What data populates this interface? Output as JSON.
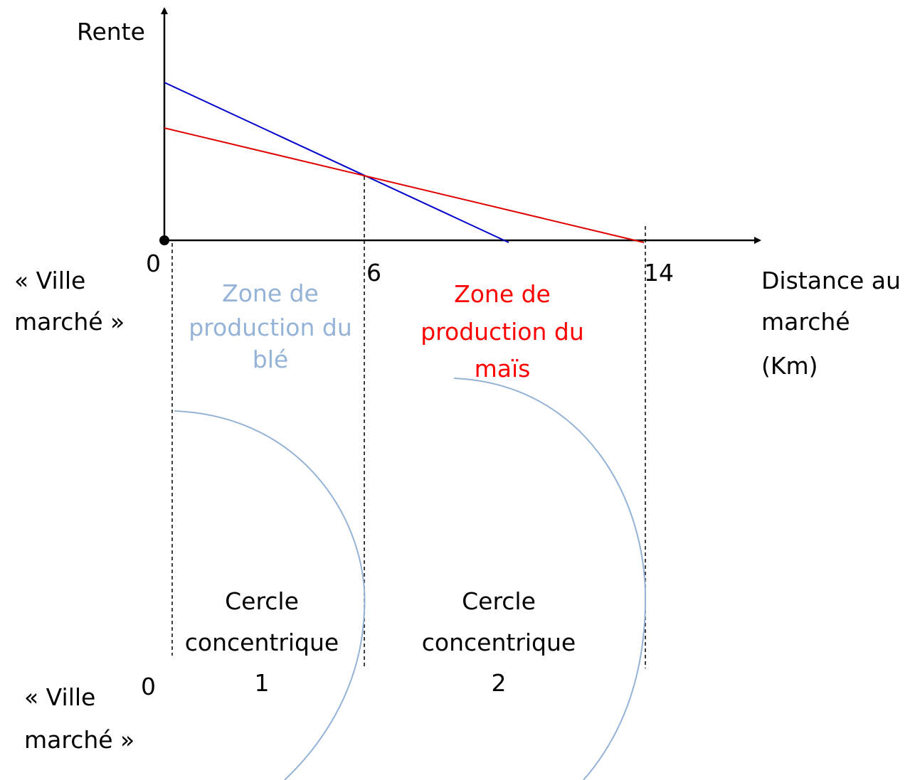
{
  "y_axis_label": "Rente",
  "x_axis_label": [
    "Distance au",
    "marché",
    "(Km)"
  ],
  "x_labels": [
    "0",
    "6",
    "14"
  ],
  "top_origin_label": [
    "« Ville",
    "marché »"
  ],
  "zones": [
    {
      "lines": [
        "Zone de",
        "production du",
        "blé"
      ]
    },
    {
      "lines": [
        "Zone de",
        "production du",
        "maïs"
      ]
    }
  ],
  "circles": [
    {
      "lines": [
        "Cercle",
        "concentrique",
        "1"
      ]
    },
    {
      "lines": [
        "Cercle",
        "concentrique",
        "2"
      ]
    }
  ],
  "bottom_origin_number": "0",
  "bottom_origin_label": [
    "« Ville",
    "marché »"
  ]
}
